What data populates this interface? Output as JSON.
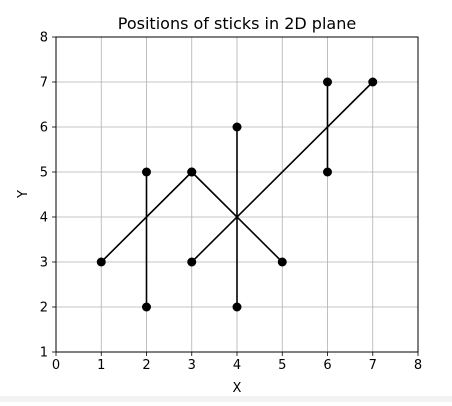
{
  "chart_data": {
    "type": "line",
    "title": "Positions of sticks in 2D plane",
    "xlabel": "X",
    "ylabel": "Y",
    "xlim": [
      0,
      8
    ],
    "ylim": [
      1,
      8
    ],
    "xticks": [
      0,
      1,
      2,
      3,
      4,
      5,
      6,
      7,
      8
    ],
    "yticks": [
      1,
      2,
      3,
      4,
      5,
      6,
      7,
      8
    ],
    "grid": true,
    "series": [
      {
        "x": [
          1,
          3
        ],
        "y": [
          3,
          5
        ]
      },
      {
        "x": [
          2,
          2
        ],
        "y": [
          2,
          5
        ]
      },
      {
        "x": [
          3,
          5
        ],
        "y": [
          5,
          3
        ]
      },
      {
        "x": [
          3,
          7
        ],
        "y": [
          3,
          7
        ]
      },
      {
        "x": [
          4,
          4
        ],
        "y": [
          2,
          6
        ]
      },
      {
        "x": [
          6,
          6
        ],
        "y": [
          5,
          7
        ]
      }
    ],
    "colors": {
      "line": "#000000",
      "marker": "#000000",
      "grid": "#b0b0b0"
    }
  }
}
